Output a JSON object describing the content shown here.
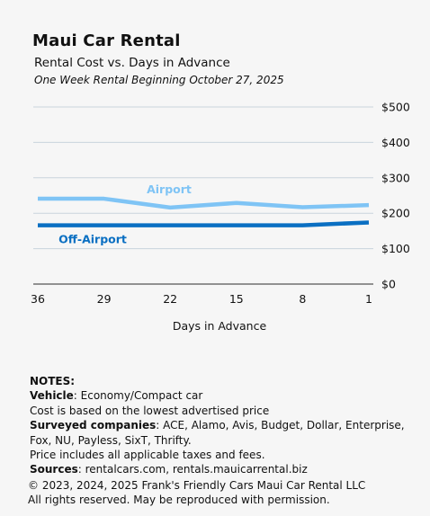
{
  "chart_data": {
    "type": "line",
    "title": "Maui Car Rental",
    "subtitle": "Rental Cost vs. Days in Advance",
    "subtitle2": "One Week Rental Beginning October 27, 2025",
    "xlabel": "Days in Advance",
    "ylabel": "",
    "x": [
      36,
      29,
      22,
      15,
      8,
      1
    ],
    "x_tick_labels": [
      "36",
      "29",
      "22",
      "15",
      "8",
      "1"
    ],
    "ylim": [
      0,
      500
    ],
    "y_ticks": [
      0,
      100,
      200,
      300,
      400,
      500
    ],
    "y_tick_labels": [
      "$0",
      "$100",
      "$200",
      "$300",
      "$400",
      "$500"
    ],
    "grid": true,
    "y_axis_side": "right",
    "series": [
      {
        "name": "Airport",
        "color": "#7fc4f5",
        "values": [
          241,
          241,
          216,
          229,
          217,
          223
        ]
      },
      {
        "name": "Off-Airport",
        "color": "#0a6fc2",
        "values": [
          166,
          166,
          166,
          166,
          166,
          174
        ]
      }
    ]
  },
  "notes": {
    "heading": "NOTES:",
    "vehicle_label": "Vehicle",
    "vehicle_value": ": Economy/Compact car",
    "cost_basis": "Cost is based on the lowest advertised price",
    "surveyed_label": "Surveyed companies",
    "surveyed_value": ": ACE, Alamo, Avis, Budget, Dollar, Enterprise, Fox, NU, Payless, SixT, Thrifty.",
    "taxes": "Price includes all applicable taxes and fees.",
    "sources_label": "Sources",
    "sources_value": ":  rentalcars.com, rentals.mauicarrental.biz"
  },
  "footer": {
    "copyright": "© 2023, 2024, 2025  Frank's Friendly Cars Maui Car Rental LLC",
    "rights": "All rights reserved. May be reproduced with permission."
  }
}
